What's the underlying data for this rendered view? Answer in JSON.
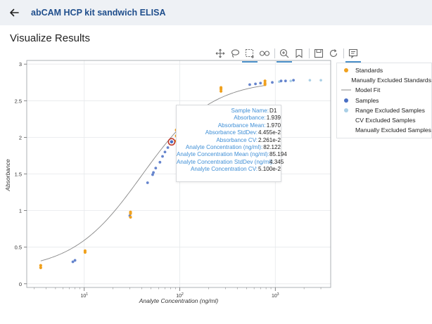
{
  "header": {
    "title": "abCAM HCP kit sandwich ELISA",
    "back_icon": "arrow-left-icon"
  },
  "page": {
    "title": "Visualize Results"
  },
  "toolbar": {
    "tools": [
      {
        "icon": "pan-icon",
        "active": false
      },
      {
        "icon": "lasso-icon",
        "active": false
      },
      {
        "icon": "box-select-icon",
        "active": true
      },
      {
        "icon": "link-icon",
        "active": false
      },
      {
        "icon": "zoom-icon",
        "active": true
      },
      {
        "icon": "bookmark-icon",
        "active": false
      },
      {
        "icon": "save-icon",
        "active": false
      },
      {
        "icon": "reset-icon",
        "active": false
      },
      {
        "icon": "hover-info-icon",
        "active": true
      }
    ]
  },
  "legend": {
    "items": [
      {
        "label": "Standards",
        "marker": "dot",
        "color": "#f0a11e"
      },
      {
        "label": "Manually Excluded Standards",
        "marker": "none",
        "color": "#f0a11e"
      },
      {
        "label": "Model Fit",
        "marker": "line",
        "color": "#888888"
      },
      {
        "label": "Samples",
        "marker": "dot",
        "color": "#4a6fc4"
      },
      {
        "label": "Range Excluded Samples",
        "marker": "dot",
        "color": "#a9cfe6"
      },
      {
        "label": "CV Excluded Samples",
        "marker": "none",
        "color": "#888888"
      },
      {
        "label": "Manually Excluded Samples",
        "marker": "none",
        "color": "#888888"
      }
    ]
  },
  "tooltip": {
    "rows": [
      {
        "label": "Sample Name:",
        "value": "D1"
      },
      {
        "label": "Absorbance:",
        "value": "1.939"
      },
      {
        "label": "Absorbance Mean:",
        "value": "1.970"
      },
      {
        "label": "Absorbance StdDev:",
        "value": "4.455e-2"
      },
      {
        "label": "Absorbance CV:",
        "value": "2.261e-2"
      },
      {
        "label": "Analyte Concentration (ng/ml):",
        "value": "82.122"
      },
      {
        "label": "Analyte Concentration Mean (ng/ml):",
        "value": "85.194"
      },
      {
        "label": "Analyte Concentration StdDev (ng/ml):",
        "value": "4.345"
      },
      {
        "label": "Analyte Concentration CV:",
        "value": "5.100e-2"
      }
    ]
  },
  "chart_data": {
    "type": "scatter",
    "xlabel": "Analyte Concentration (ng/ml)",
    "ylabel": "Absorbance",
    "x_scale": "log",
    "xlim": [
      2.5,
      3800
    ],
    "ylim": [
      -0.05,
      3.05
    ],
    "x_ticks": [
      {
        "value": 10,
        "base": "10",
        "exp": "1"
      },
      {
        "value": 100,
        "base": "10",
        "exp": "2"
      },
      {
        "value": 1000,
        "base": "10",
        "exp": "3"
      }
    ],
    "y_ticks": [
      0,
      0.5,
      1,
      1.5,
      2,
      2.5,
      3
    ],
    "grid": true,
    "model_fit": {
      "a": 2.78,
      "d": 0.18,
      "c": 40,
      "b": 1.2,
      "x_range": [
        3.5,
        800
      ],
      "color": "#888888"
    },
    "standards": {
      "color": "#f0a11e",
      "points": [
        [
          3.5,
          0.22
        ],
        [
          3.5,
          0.25
        ],
        [
          10.2,
          0.43
        ],
        [
          10.2,
          0.45
        ],
        [
          30.5,
          0.91
        ],
        [
          30.5,
          0.96
        ],
        [
          30.5,
          0.98
        ],
        [
          92,
          1.95
        ],
        [
          92,
          2.02
        ],
        [
          92,
          2.1
        ],
        [
          270,
          2.63
        ],
        [
          270,
          2.66
        ],
        [
          270,
          2.68
        ],
        [
          780,
          2.72
        ],
        [
          780,
          2.74
        ],
        [
          780,
          2.77
        ]
      ]
    },
    "samples": {
      "color": "#4a6fc4",
      "points": [
        [
          7.6,
          0.3
        ],
        [
          8.0,
          0.32
        ],
        [
          30,
          0.93
        ],
        [
          46,
          1.38
        ],
        [
          52,
          1.49
        ],
        [
          53,
          1.52
        ],
        [
          56,
          1.58
        ],
        [
          62,
          1.66
        ],
        [
          66,
          1.74
        ],
        [
          70,
          1.8
        ],
        [
          75,
          1.86
        ],
        [
          98,
          1.94
        ],
        [
          100,
          1.97
        ],
        [
          540,
          2.72
        ],
        [
          620,
          2.73
        ],
        [
          700,
          2.74
        ],
        [
          930,
          2.75
        ],
        [
          1150,
          2.77
        ],
        [
          1280,
          2.77
        ],
        [
          1550,
          2.78
        ]
      ]
    },
    "range_excluded": {
      "color": "#a9cfe6",
      "points": [
        [
          2300,
          2.78
        ],
        [
          3000,
          2.78
        ],
        [
          1450,
          2.77
        ],
        [
          1100,
          2.76
        ]
      ]
    },
    "highlighted": {
      "x": 82.122,
      "y": 1.939,
      "color": "#c0392b"
    }
  }
}
